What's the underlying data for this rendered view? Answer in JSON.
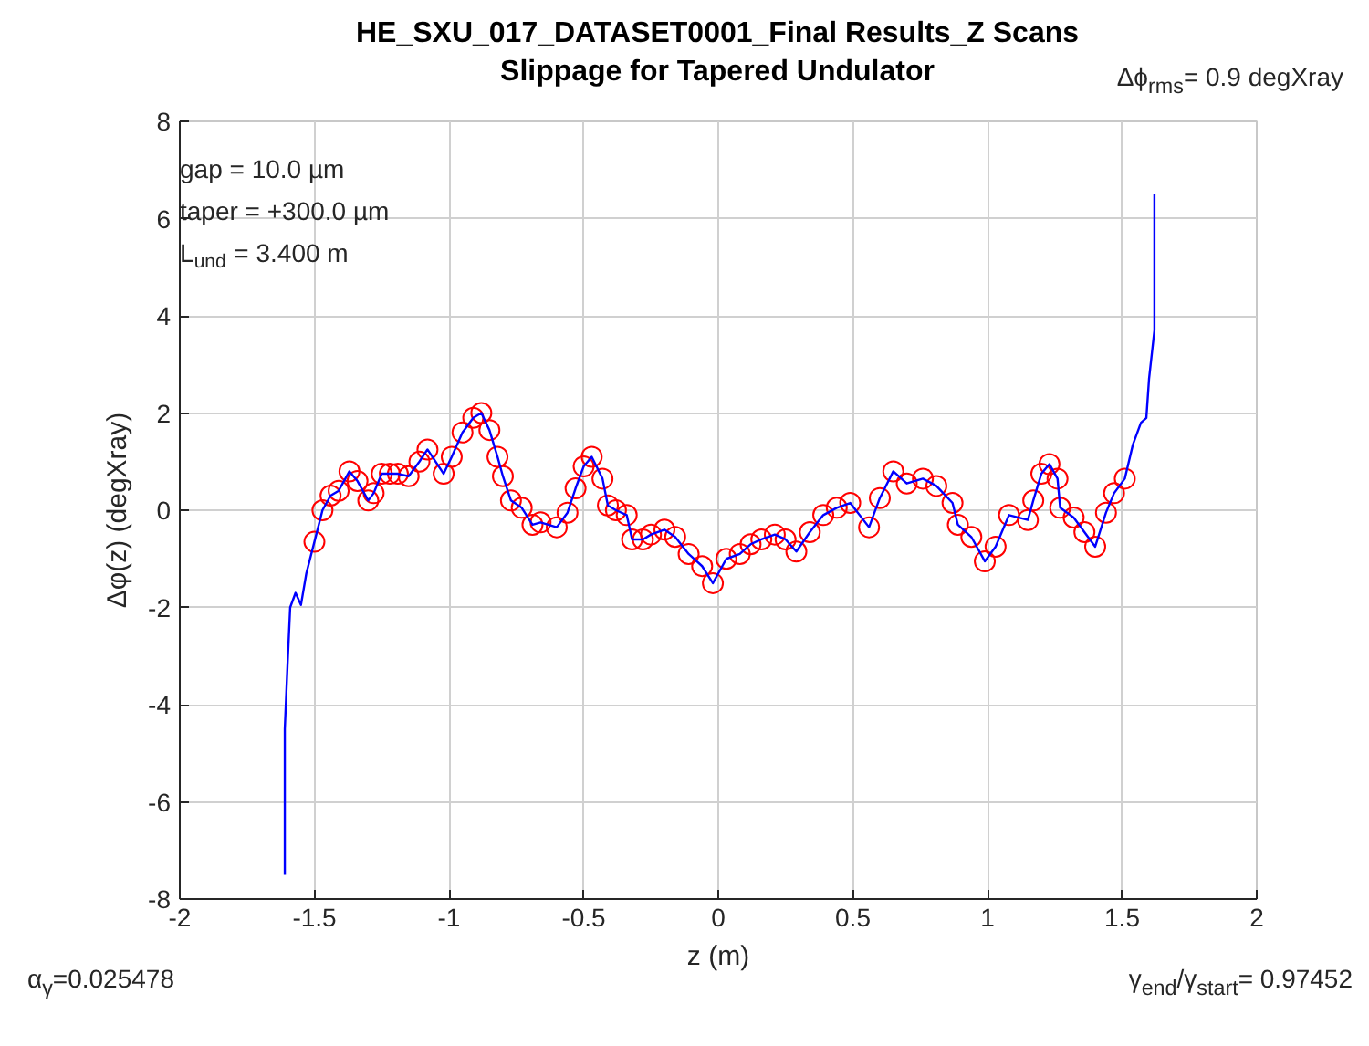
{
  "chart_data": {
    "type": "line",
    "title": "HE_SXU_017_DATASET0001_Final Results_Z Scans",
    "subtitle": "Slippage for Tapered Undulator",
    "xlabel": "z (m)",
    "ylabel": "Δφ(z) (degXray)",
    "annotations": [
      "Δϕ$_{rms}$= 0.9 degXray",
      "gap = 10.0 µm",
      "taper = +300.0 µm",
      "L$_{und}$ = 3.400 m",
      "α$_{γ}$=0.025478",
      "γ$_{end}$/γ$_{start}$= 0.97452"
    ],
    "xlim": [
      -2,
      2
    ],
    "ylim": [
      -8,
      8
    ],
    "xticks": [
      -2,
      -1.5,
      -1,
      -0.5,
      0,
      0.5,
      1,
      1.5,
      2
    ],
    "yticks": [
      -8,
      -6,
      -4,
      -2,
      0,
      2,
      4,
      6,
      8
    ],
    "grid": true,
    "series": [
      {
        "type": "scatter",
        "marker": "circle",
        "color": "#ff0000",
        "x": [
          -1.5,
          -1.47,
          -1.44,
          -1.41,
          -1.37,
          -1.34,
          -1.3,
          -1.28,
          -1.25,
          -1.22,
          -1.19,
          -1.15,
          -1.11,
          -1.08,
          -1.02,
          -0.99,
          -0.95,
          -0.91,
          -0.88,
          -0.85,
          -0.82,
          -0.8,
          -0.77,
          -0.73,
          -0.69,
          -0.66,
          -0.6,
          -0.56,
          -0.53,
          -0.5,
          -0.47,
          -0.43,
          -0.41,
          -0.38,
          -0.34,
          -0.32,
          -0.28,
          -0.25,
          -0.2,
          -0.16,
          -0.11,
          -0.06,
          -0.02,
          0.03,
          0.08,
          0.12,
          0.16,
          0.21,
          0.25,
          0.29,
          0.34,
          0.39,
          0.44,
          0.49,
          0.56,
          0.6,
          0.65,
          0.7,
          0.76,
          0.81,
          0.87,
          0.89,
          0.94,
          0.99,
          1.03,
          1.08,
          1.15,
          1.17,
          1.2,
          1.23,
          1.26,
          1.27,
          1.32,
          1.36,
          1.4,
          1.44,
          1.47,
          1.51
        ],
        "values": [
          -0.65,
          0.0,
          0.3,
          0.4,
          0.8,
          0.6,
          0.2,
          0.35,
          0.75,
          0.75,
          0.75,
          0.7,
          1.0,
          1.25,
          0.75,
          1.1,
          1.6,
          1.9,
          2.0,
          1.65,
          1.1,
          0.7,
          0.2,
          0.05,
          -0.3,
          -0.25,
          -0.35,
          -0.05,
          0.45,
          0.9,
          1.1,
          0.65,
          0.1,
          0.0,
          -0.1,
          -0.6,
          -0.6,
          -0.5,
          -0.4,
          -0.55,
          -0.9,
          -1.15,
          -1.5,
          -1.0,
          -0.9,
          -0.7,
          -0.6,
          -0.5,
          -0.6,
          -0.85,
          -0.45,
          -0.1,
          0.05,
          0.15,
          -0.35,
          0.25,
          0.8,
          0.55,
          0.65,
          0.5,
          0.15,
          -0.3,
          -0.55,
          -1.05,
          -0.75,
          -0.1,
          -0.2,
          0.2,
          0.75,
          0.95,
          0.65,
          0.05,
          -0.15,
          -0.45,
          -0.75,
          -0.05,
          0.35,
          0.65
        ]
      },
      {
        "marker": "none",
        "line_style": "solid",
        "color": "#0000ff",
        "x": [
          -1.61,
          -1.61,
          -1.6,
          -1.59,
          -1.57,
          -1.55,
          -1.53,
          -1.5,
          -1.47,
          -1.44,
          -1.41,
          -1.37,
          -1.34,
          -1.3,
          -1.28,
          -1.25,
          -1.22,
          -1.19,
          -1.15,
          -1.11,
          -1.08,
          -1.02,
          -0.99,
          -0.95,
          -0.91,
          -0.88,
          -0.85,
          -0.82,
          -0.8,
          -0.77,
          -0.73,
          -0.69,
          -0.66,
          -0.6,
          -0.56,
          -0.53,
          -0.5,
          -0.47,
          -0.43,
          -0.41,
          -0.38,
          -0.34,
          -0.32,
          -0.28,
          -0.25,
          -0.2,
          -0.16,
          -0.11,
          -0.06,
          -0.02,
          0.03,
          0.08,
          0.12,
          0.16,
          0.21,
          0.25,
          0.29,
          0.34,
          0.39,
          0.44,
          0.49,
          0.56,
          0.6,
          0.65,
          0.7,
          0.76,
          0.81,
          0.87,
          0.89,
          0.94,
          0.99,
          1.03,
          1.08,
          1.15,
          1.17,
          1.2,
          1.23,
          1.26,
          1.27,
          1.32,
          1.36,
          1.4,
          1.44,
          1.47,
          1.51,
          1.54,
          1.57,
          1.59,
          1.6,
          1.62,
          1.62
        ],
        "values": [
          -7.5,
          -4.5,
          -3.2,
          -2.0,
          -1.7,
          -1.95,
          -1.3,
          -0.65,
          0.0,
          0.3,
          0.4,
          0.8,
          0.6,
          0.2,
          0.35,
          0.75,
          0.75,
          0.75,
          0.7,
          1.0,
          1.25,
          0.75,
          1.1,
          1.6,
          1.9,
          2.0,
          1.65,
          1.1,
          0.7,
          0.2,
          0.05,
          -0.3,
          -0.25,
          -0.35,
          -0.05,
          0.45,
          0.9,
          1.1,
          0.65,
          0.1,
          0.0,
          -0.1,
          -0.6,
          -0.6,
          -0.5,
          -0.4,
          -0.55,
          -0.9,
          -1.15,
          -1.5,
          -1.0,
          -0.9,
          -0.7,
          -0.6,
          -0.5,
          -0.6,
          -0.85,
          -0.45,
          -0.1,
          0.05,
          0.15,
          -0.35,
          0.25,
          0.8,
          0.55,
          0.65,
          0.5,
          0.15,
          -0.3,
          -0.55,
          -1.05,
          -0.75,
          -0.1,
          -0.2,
          0.2,
          0.75,
          0.95,
          0.65,
          0.05,
          -0.15,
          -0.45,
          -0.75,
          -0.05,
          0.35,
          0.65,
          1.35,
          1.8,
          1.9,
          2.7,
          3.7,
          6.5
        ]
      }
    ]
  }
}
